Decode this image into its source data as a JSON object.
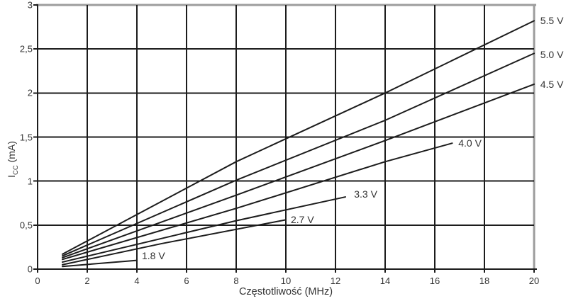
{
  "chart_data": {
    "type": "line",
    "title": "",
    "xlabel": "Częstotliwość (MHz)",
    "ylabel": {
      "symbol": "I",
      "subscript": "CC",
      "unit": " (mA)"
    },
    "xlim": [
      0,
      20
    ],
    "ylim": [
      0,
      3
    ],
    "grid": true,
    "legend_position": "labels-at-line-ends",
    "x_ticks": {
      "values": [
        0,
        2,
        4,
        6,
        8,
        10,
        12,
        14,
        16,
        18,
        20
      ],
      "labels": [
        "0",
        "2",
        "4",
        "6",
        "8",
        "10",
        "12",
        "14",
        "16",
        "18",
        "20"
      ]
    },
    "y_ticks": {
      "values": [
        0,
        0.5,
        1,
        1.5,
        2,
        2.5,
        3
      ],
      "labels": [
        "0",
        "0,5",
        "1",
        "1,5",
        "2",
        "2,5",
        "3"
      ]
    },
    "series": [
      {
        "name": "5.5 V",
        "points": [
          [
            1,
            0.17
          ],
          [
            8,
            1.22
          ],
          [
            14,
            2.0
          ],
          [
            20,
            2.82
          ]
        ],
        "label_anchor": {
          "x": 20.25,
          "y": 2.82
        }
      },
      {
        "name": "5.0 V",
        "points": [
          [
            1,
            0.15
          ],
          [
            8,
            1.01
          ],
          [
            14,
            1.69
          ],
          [
            20,
            2.45
          ]
        ],
        "label_anchor": {
          "x": 20.25,
          "y": 2.44
        }
      },
      {
        "name": "4.5 V",
        "points": [
          [
            1,
            0.13
          ],
          [
            8,
            0.84
          ],
          [
            14,
            1.46
          ],
          [
            20,
            2.1
          ]
        ],
        "label_anchor": {
          "x": 20.25,
          "y": 2.1
        }
      },
      {
        "name": "4.0 V",
        "points": [
          [
            1,
            0.11
          ],
          [
            8,
            0.69
          ],
          [
            14,
            1.22
          ],
          [
            16.7,
            1.43
          ]
        ],
        "label_anchor": {
          "x": 16.95,
          "y": 1.43
        }
      },
      {
        "name": "3.3 V",
        "points": [
          [
            1,
            0.08
          ],
          [
            8,
            0.55
          ],
          [
            12.4,
            0.82
          ]
        ],
        "label_anchor": {
          "x": 12.75,
          "y": 0.85
        }
      },
      {
        "name": "2.7 V",
        "points": [
          [
            1,
            0.05
          ],
          [
            5,
            0.29
          ],
          [
            10,
            0.56
          ]
        ],
        "label_anchor": {
          "x": 10.2,
          "y": 0.56
        }
      },
      {
        "name": "1.8 V",
        "points": [
          [
            1,
            0.03
          ],
          [
            4,
            0.1
          ]
        ],
        "label_anchor": {
          "x": 4.2,
          "y": 0.15
        }
      }
    ],
    "colors": {
      "line": "#1c1c1c",
      "grid": "#1c1c1c",
      "frame_gray": "#9d9d9d",
      "text": "#333333",
      "background": "#ffffff"
    }
  }
}
